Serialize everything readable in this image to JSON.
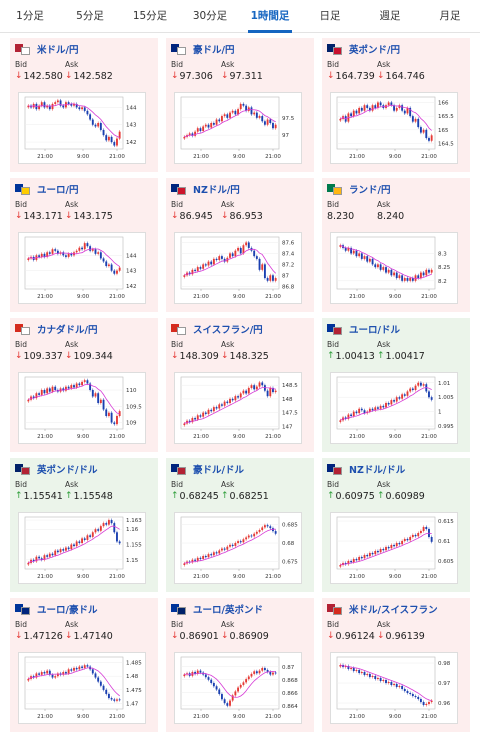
{
  "tabs": [
    {
      "label": "1分足",
      "active": false
    },
    {
      "label": "5分足",
      "active": false
    },
    {
      "label": "15分足",
      "active": false
    },
    {
      "label": "30分足",
      "active": false
    },
    {
      "label": "1時間足",
      "active": true
    },
    {
      "label": "日足",
      "active": false
    },
    {
      "label": "週足",
      "active": false
    },
    {
      "label": "月足",
      "active": false
    }
  ],
  "bid_label": "Bid",
  "ask_label": "Ask",
  "pairs": [
    {
      "name": "米ドル/円",
      "flag": [
        "#b22234",
        "#ffffff"
      ],
      "direction": "down",
      "bid": "142.580",
      "ask": "142.582",
      "chart_data": {
        "type": "candlestick",
        "x_ticks": [
          "21:00",
          "9:00",
          "21:00"
        ],
        "y_ticks": [
          "144",
          "143",
          "142"
        ],
        "y_min": 141.6,
        "y_max": 144.6,
        "close": [
          144.1,
          144.0,
          144.2,
          143.9,
          144.1,
          144.3,
          144.0,
          144.1,
          143.9,
          144.2,
          144.3,
          144.4,
          144.1,
          144.0,
          144.3,
          144.2,
          144.1,
          144.2,
          144.0,
          143.9,
          144.0,
          143.8,
          143.6,
          143.3,
          143.0,
          142.9,
          143.1,
          142.7,
          142.4,
          142.1,
          142.3,
          142.0,
          141.8,
          142.2,
          142.6
        ]
      }
    },
    {
      "name": "豪ドル/円",
      "flag": [
        "#00247d",
        "#ffffff"
      ],
      "direction": "down",
      "bid": "97.306",
      "ask": "97.311",
      "chart_data": {
        "type": "candlestick",
        "x_ticks": [
          "21:00",
          "9:00",
          "21:00"
        ],
        "y_ticks": [
          "97.5",
          "97"
        ],
        "y_min": 96.6,
        "y_max": 98.1,
        "close": [
          96.95,
          97.0,
          97.05,
          96.98,
          97.1,
          97.2,
          97.12,
          97.25,
          97.3,
          97.22,
          97.35,
          97.3,
          97.45,
          97.4,
          97.55,
          97.6,
          97.5,
          97.65,
          97.7,
          97.6,
          97.75,
          97.9,
          97.85,
          97.7,
          97.8,
          97.6,
          97.65,
          97.5,
          97.55,
          97.4,
          97.3,
          97.45,
          97.35,
          97.2,
          97.3
        ]
      }
    },
    {
      "name": "英ポンド/円",
      "flag": [
        "#012169",
        "#c8102e"
      ],
      "direction": "down",
      "bid": "164.739",
      "ask": "164.746",
      "chart_data": {
        "type": "candlestick",
        "x_ticks": [
          "21:00",
          "9:00",
          "21:00"
        ],
        "y_ticks": [
          "166",
          "165.5",
          "165",
          "164.5"
        ],
        "y_min": 164.3,
        "y_max": 166.2,
        "close": [
          165.4,
          165.5,
          165.3,
          165.6,
          165.5,
          165.7,
          165.6,
          165.8,
          165.7,
          165.9,
          165.8,
          165.7,
          165.9,
          165.8,
          166.0,
          165.9,
          165.8,
          165.9,
          166.0,
          165.9,
          165.7,
          165.8,
          165.9,
          165.7,
          165.6,
          165.8,
          165.5,
          165.3,
          165.4,
          165.1,
          164.9,
          165.0,
          164.7,
          164.6,
          164.8
        ]
      }
    },
    {
      "name": "ユーロ/円",
      "flag": [
        "#003399",
        "#ffcc00"
      ],
      "direction": "down",
      "bid": "143.171",
      "ask": "143.175",
      "chart_data": {
        "type": "candlestick",
        "x_ticks": [
          "21:00",
          "9:00",
          "21:00"
        ],
        "y_ticks": [
          "144",
          "143",
          "142"
        ],
        "y_min": 141.8,
        "y_max": 145.2,
        "close": [
          143.8,
          143.9,
          143.7,
          144.0,
          143.9,
          144.1,
          143.9,
          144.2,
          144.1,
          144.4,
          144.3,
          144.1,
          144.2,
          144.0,
          143.9,
          144.1,
          144.0,
          144.2,
          144.3,
          144.5,
          144.4,
          144.8,
          144.6,
          144.3,
          144.4,
          144.1,
          144.2,
          143.8,
          143.6,
          143.3,
          143.4,
          143.0,
          142.8,
          143.0,
          143.2
        ]
      }
    },
    {
      "name": "NZドル/円",
      "flag": [
        "#00247d",
        "#cc142b"
      ],
      "direction": "down",
      "bid": "86.945",
      "ask": "86.953",
      "chart_data": {
        "type": "candlestick",
        "x_ticks": [
          "21:00",
          "9:00",
          "21:00"
        ],
        "y_ticks": [
          "87.6",
          "87.4",
          "87.2",
          "87",
          "86.8"
        ],
        "y_min": 86.75,
        "y_max": 87.7,
        "close": [
          87.0,
          87.05,
          87.02,
          87.1,
          87.08,
          87.15,
          87.12,
          87.2,
          87.18,
          87.25,
          87.2,
          87.3,
          87.28,
          87.35,
          87.3,
          87.25,
          87.32,
          87.4,
          87.35,
          87.45,
          87.5,
          87.4,
          87.55,
          87.6,
          87.5,
          87.45,
          87.35,
          87.3,
          87.1,
          87.2,
          86.95,
          86.9,
          87.0,
          86.9,
          86.95
        ]
      }
    },
    {
      "name": "ランド/円",
      "flag": [
        "#007a4d",
        "#ffb612"
      ],
      "direction": "none",
      "bid": "8.230",
      "ask": "8.240",
      "chart_data": {
        "type": "candlestick",
        "x_ticks": [
          "21:00",
          "9:00",
          "21:00"
        ],
        "y_ticks": [
          "8.3",
          "8.25",
          "8.2"
        ],
        "y_min": 8.17,
        "y_max": 8.36,
        "close": [
          8.33,
          8.32,
          8.31,
          8.32,
          8.3,
          8.31,
          8.29,
          8.3,
          8.28,
          8.29,
          8.27,
          8.28,
          8.26,
          8.25,
          8.26,
          8.24,
          8.25,
          8.23,
          8.24,
          8.22,
          8.23,
          8.21,
          8.22,
          8.2,
          8.21,
          8.2,
          8.21,
          8.2,
          8.22,
          8.21,
          8.23,
          8.22,
          8.24,
          8.23,
          8.24
        ]
      }
    },
    {
      "name": "カナダドル/円",
      "flag": [
        "#d52b1e",
        "#ffffff"
      ],
      "direction": "down",
      "bid": "109.337",
      "ask": "109.344",
      "chart_data": {
        "type": "candlestick",
        "x_ticks": [
          "21:00",
          "9:00",
          "21:00"
        ],
        "y_ticks": [
          "110",
          "109.5",
          "109"
        ],
        "y_min": 108.8,
        "y_max": 110.4,
        "close": [
          109.7,
          109.8,
          109.75,
          109.9,
          109.85,
          110.0,
          109.9,
          110.05,
          109.95,
          110.1,
          110.0,
          109.95,
          110.05,
          109.98,
          110.1,
          110.05,
          110.15,
          110.08,
          110.2,
          110.15,
          110.25,
          110.3,
          110.2,
          110.0,
          109.8,
          109.9,
          109.6,
          109.7,
          109.4,
          109.2,
          109.3,
          109.0,
          108.95,
          109.2,
          109.35
        ]
      }
    },
    {
      "name": "スイスフラン/円",
      "flag": [
        "#d52b1e",
        "#ffffff"
      ],
      "direction": "down",
      "bid": "148.309",
      "ask": "148.325",
      "chart_data": {
        "type": "candlestick",
        "x_ticks": [
          "21:00",
          "9:00",
          "21:00"
        ],
        "y_ticks": [
          "148.5",
          "148",
          "147.5",
          "147"
        ],
        "y_min": 146.9,
        "y_max": 148.8,
        "close": [
          147.1,
          147.2,
          147.15,
          147.3,
          147.25,
          147.4,
          147.35,
          147.5,
          147.45,
          147.6,
          147.55,
          147.7,
          147.65,
          147.8,
          147.75,
          147.9,
          147.85,
          148.0,
          147.95,
          148.1,
          148.05,
          148.2,
          148.3,
          148.2,
          148.4,
          148.5,
          148.35,
          148.45,
          148.6,
          148.5,
          148.3,
          148.1,
          148.4,
          148.25,
          148.3
        ]
      }
    },
    {
      "name": "ユーロ/ドル",
      "flag": [
        "#003399",
        "#b22234"
      ],
      "direction": "up",
      "bid": "1.00413",
      "ask": "1.00417",
      "chart_data": {
        "type": "candlestick",
        "x_ticks": [
          "21:00",
          "9:00",
          "21:00"
        ],
        "y_ticks": [
          "1.01",
          "1.005",
          "1",
          "0.995"
        ],
        "y_min": 0.994,
        "y_max": 1.012,
        "close": [
          0.997,
          0.998,
          0.9975,
          0.999,
          0.9985,
          1.0,
          0.9995,
          1.001,
          1.0005,
          0.9995,
          1.0,
          1.001,
          1.0005,
          1.0015,
          1.001,
          1.002,
          1.0015,
          1.003,
          1.0025,
          1.004,
          1.0035,
          1.005,
          1.0045,
          1.006,
          1.0055,
          1.007,
          1.008,
          1.0075,
          1.009,
          1.01,
          1.009,
          1.0095,
          1.007,
          1.005,
          1.0041
        ]
      }
    },
    {
      "name": "英ポンド/ドル",
      "flag": [
        "#012169",
        "#b22234"
      ],
      "direction": "up",
      "bid": "1.15541",
      "ask": "1.15548",
      "chart_data": {
        "type": "candlestick",
        "x_ticks": [
          "21:00",
          "9:00",
          "21:00"
        ],
        "y_ticks": [
          "1.163",
          "1.16",
          "1.155",
          "1.15"
        ],
        "y_min": 1.147,
        "y_max": 1.164,
        "close": [
          1.149,
          1.15,
          1.1495,
          1.151,
          1.1505,
          1.15,
          1.1515,
          1.151,
          1.152,
          1.1515,
          1.153,
          1.1525,
          1.1535,
          1.153,
          1.154,
          1.1535,
          1.155,
          1.1545,
          1.156,
          1.1555,
          1.157,
          1.1565,
          1.158,
          1.1575,
          1.159,
          1.16,
          1.1595,
          1.161,
          1.162,
          1.1615,
          1.163,
          1.162,
          1.159,
          1.156,
          1.1554
        ]
      }
    },
    {
      "name": "豪ドル/ドル",
      "flag": [
        "#00247d",
        "#b22234"
      ],
      "direction": "up",
      "bid": "0.68245",
      "ask": "0.68251",
      "chart_data": {
        "type": "candlestick",
        "x_ticks": [
          "21:00",
          "9:00",
          "21:00"
        ],
        "y_ticks": [
          "0.685",
          "0.68",
          "0.675"
        ],
        "y_min": 0.673,
        "y_max": 0.687,
        "close": [
          0.6745,
          0.675,
          0.6748,
          0.6755,
          0.6752,
          0.676,
          0.6757,
          0.6765,
          0.6762,
          0.677,
          0.6767,
          0.6775,
          0.6772,
          0.678,
          0.6785,
          0.6782,
          0.679,
          0.6795,
          0.6792,
          0.68,
          0.6805,
          0.6802,
          0.681,
          0.6815,
          0.682,
          0.6818,
          0.6825,
          0.683,
          0.6835,
          0.6842,
          0.6848,
          0.6845,
          0.684,
          0.6832,
          0.6825
        ]
      }
    },
    {
      "name": "NZドル/ドル",
      "flag": [
        "#00247d",
        "#b22234"
      ],
      "direction": "up",
      "bid": "0.60975",
      "ask": "0.60989",
      "chart_data": {
        "type": "candlestick",
        "x_ticks": [
          "21:00",
          "9:00",
          "21:00"
        ],
        "y_ticks": [
          "0.615",
          "0.61",
          "0.605"
        ],
        "y_min": 0.603,
        "y_max": 0.616,
        "close": [
          0.604,
          0.6045,
          0.6042,
          0.605,
          0.6047,
          0.6055,
          0.6052,
          0.606,
          0.6057,
          0.6065,
          0.6062,
          0.607,
          0.6067,
          0.6075,
          0.6072,
          0.608,
          0.6077,
          0.6085,
          0.6082,
          0.609,
          0.6087,
          0.6095,
          0.6092,
          0.61,
          0.6105,
          0.6102,
          0.611,
          0.6115,
          0.6112,
          0.612,
          0.6125,
          0.6135,
          0.613,
          0.611,
          0.6098
        ]
      }
    },
    {
      "name": "ユーロ/豪ドル",
      "flag": [
        "#003399",
        "#00247d"
      ],
      "direction": "down",
      "bid": "1.47126",
      "ask": "1.47140",
      "chart_data": {
        "type": "candlestick",
        "x_ticks": [
          "21:00",
          "9:00",
          "21:00"
        ],
        "y_ticks": [
          "1.485",
          "1.48",
          "1.475",
          "1.47"
        ],
        "y_min": 1.468,
        "y_max": 1.487,
        "close": [
          1.479,
          1.48,
          1.4795,
          1.481,
          1.4805,
          1.4815,
          1.481,
          1.482,
          1.4805,
          1.4795,
          1.48,
          1.481,
          1.4805,
          1.4815,
          1.481,
          1.4825,
          1.482,
          1.483,
          1.4825,
          1.4835,
          1.483,
          1.484,
          1.4835,
          1.4825,
          1.481,
          1.4795,
          1.478,
          1.4765,
          1.475,
          1.4735,
          1.472,
          1.4715,
          1.471,
          1.4715,
          1.4713
        ]
      }
    },
    {
      "name": "ユーロ/英ポンド",
      "flag": [
        "#003399",
        "#012169"
      ],
      "direction": "down",
      "bid": "0.86901",
      "ask": "0.86909",
      "chart_data": {
        "type": "candlestick",
        "x_ticks": [
          "21:00",
          "9:00",
          "21:00"
        ],
        "y_ticks": [
          "0.87",
          "0.868",
          "0.866",
          "0.864"
        ],
        "y_min": 0.8635,
        "y_max": 0.8715,
        "close": [
          0.8688,
          0.869,
          0.8686,
          0.8692,
          0.8689,
          0.8694,
          0.8691,
          0.8688,
          0.8684,
          0.868,
          0.8675,
          0.867,
          0.8665,
          0.8658,
          0.865,
          0.8644,
          0.864,
          0.8648,
          0.8656,
          0.8662,
          0.8668,
          0.8672,
          0.8676,
          0.8681,
          0.8685,
          0.8689,
          0.8693,
          0.869,
          0.8694,
          0.8698,
          0.8695,
          0.8692,
          0.8688,
          0.8691,
          0.869
        ]
      }
    },
    {
      "name": "米ドル/スイスフラン",
      "flag": [
        "#b22234",
        "#d52b1e"
      ],
      "direction": "down",
      "bid": "0.96124",
      "ask": "0.96139",
      "chart_data": {
        "type": "candlestick",
        "x_ticks": [
          "21:00",
          "9:00",
          "21:00"
        ],
        "y_ticks": [
          "0.98",
          "0.97",
          "0.96"
        ],
        "y_min": 0.957,
        "y_max": 0.983,
        "close": [
          0.979,
          0.978,
          0.9785,
          0.977,
          0.9775,
          0.976,
          0.9765,
          0.975,
          0.9755,
          0.974,
          0.9745,
          0.973,
          0.9735,
          0.972,
          0.9725,
          0.971,
          0.9715,
          0.97,
          0.9705,
          0.969,
          0.9695,
          0.968,
          0.9685,
          0.967,
          0.966,
          0.965,
          0.9645,
          0.9635,
          0.963,
          0.962,
          0.9605,
          0.959,
          0.9595,
          0.9605,
          0.9612
        ]
      }
    }
  ]
}
